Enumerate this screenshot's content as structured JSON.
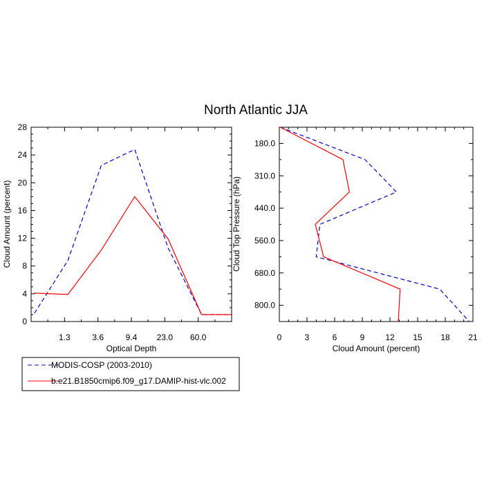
{
  "title": "North Atlantic JJA",
  "colors": {
    "modis": "#0000cc",
    "model": "#ff0000"
  },
  "chart_data": [
    {
      "type": "line",
      "xlabel": "Optical Depth",
      "ylabel": "Cloud Amount (percent)",
      "x_categories": [
        "",
        "1.3",
        "3.6",
        "9.4",
        "23.0",
        "60.0",
        ""
      ],
      "xlim": [
        0,
        6
      ],
      "ylim": [
        0,
        28
      ],
      "yticks": [
        "0",
        "4",
        "8",
        "12",
        "16",
        "20",
        "24",
        "28"
      ],
      "x": [
        0.1,
        1.1,
        2.1,
        3.1,
        4.1,
        5.1,
        6.0
      ],
      "series": [
        {
          "name": "MODIS-COSP (2003-2010)",
          "style": "dashed",
          "values": [
            1.2,
            8.8,
            22.5,
            24.8,
            10.6,
            1.0,
            1.0
          ]
        },
        {
          "name": "b.e21.B1850cmip6.f09_g17.DAMIP-hist-vlc.002",
          "style": "solid",
          "values": [
            4.1,
            3.9,
            10.3,
            18.0,
            11.9,
            1.0,
            1.0
          ]
        }
      ]
    },
    {
      "type": "line",
      "xlabel": "Cloud Amount (percent)",
      "ylabel": "Cloud Top Pressure (hPa)",
      "xlim": [
        0,
        21
      ],
      "xticks": [
        "0",
        "3",
        "6",
        "9",
        "12",
        "15",
        "18",
        "21"
      ],
      "ytick_labels": [
        "180.0",
        "310.0",
        "440.0",
        "560.0",
        "680.0",
        "800.0"
      ],
      "ytick_positions": [
        0.5,
        1.5,
        2.5,
        3.5,
        4.5,
        5.5
      ],
      "ylim": [
        6,
        0
      ],
      "series": [
        {
          "name": "MODIS-COSP (2003-2010)",
          "style": "dashed",
          "x": [
            0.1,
            9.3,
            12.7,
            4.4,
            4.0,
            17.4,
            20.6
          ],
          "y": [
            0,
            1.0,
            2.0,
            3.0,
            4.0,
            5.0,
            6.0
          ]
        },
        {
          "name": "b.e21.B1850cmip6.f09_g17.DAMIP-hist-vlc.002",
          "style": "solid",
          "x": [
            0.1,
            6.9,
            7.6,
            3.9,
            4.8,
            13.1,
            12.9
          ],
          "y": [
            0,
            1.0,
            2.0,
            3.0,
            4.0,
            5.0,
            6.0
          ]
        }
      ]
    }
  ],
  "legend": [
    {
      "label": "MODIS-COSP (2003-2010)",
      "style": "dashed"
    },
    {
      "label": "b.e21.B1850cmip6.f09_g17.DAMIP-hist-vlc.002",
      "style": "solid"
    }
  ]
}
